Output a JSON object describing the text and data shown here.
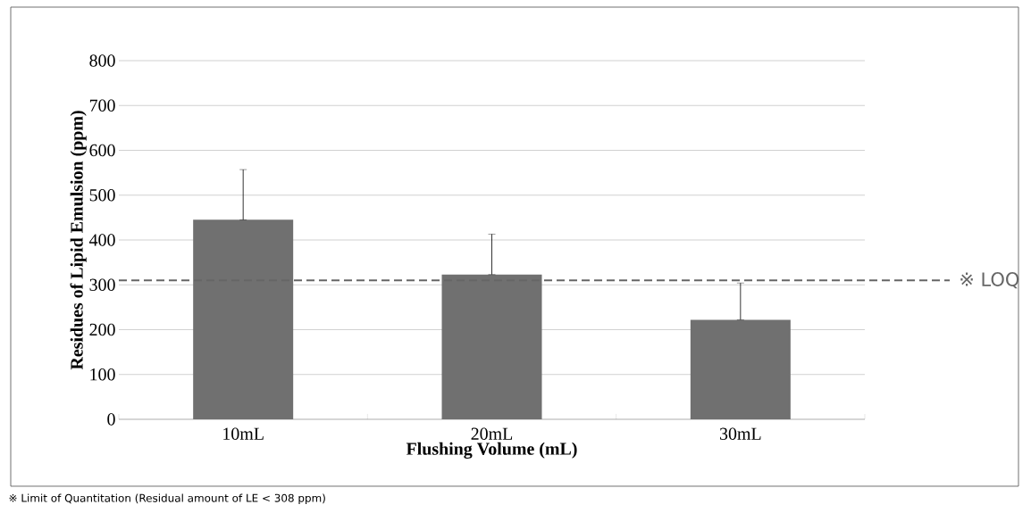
{
  "chart_data": {
    "type": "bar",
    "xlabel": "Flushing Volume (mL)",
    "ylabel": "Residues of Lipid Emulsion (ppm)",
    "categories": [
      "10mL",
      "20mL",
      "30mL"
    ],
    "values": [
      445,
      323,
      222
    ],
    "errors": [
      [
        445,
        557
      ],
      [
        323,
        413
      ],
      [
        222,
        304
      ]
    ],
    "color": "#707070",
    "ylim": [
      0,
      800
    ],
    "yticks": [
      0,
      100,
      200,
      300,
      400,
      500,
      600,
      700,
      800
    ],
    "grid": "y",
    "ref_lines": [
      {
        "axis": "y",
        "value": 310,
        "label": "※ LOQ",
        "color": "#666666",
        "line_style": "dashed"
      }
    ],
    "annotations": [
      "※ Limit of Quantitation (Residual amount of LE < 308 ppm)"
    ]
  }
}
